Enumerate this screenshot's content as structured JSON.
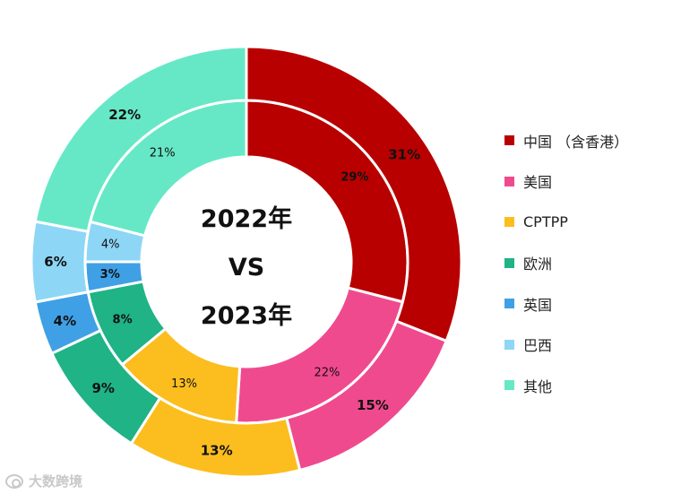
{
  "chart_data": {
    "type": "pie",
    "subtype": "nested-donut",
    "center_text": [
      "2022年",
      "VS",
      "2023年"
    ],
    "categories": [
      "中国 （含香港）",
      "美国",
      "CPTPP",
      "欧洲",
      "英国",
      "巴西",
      "其他"
    ],
    "colors": [
      "#B80000",
      "#F04A8E",
      "#FBBE1E",
      "#1FB386",
      "#3FA0E6",
      "#8DD6F6",
      "#66E8C6"
    ],
    "series": [
      {
        "values": [
          29,
          22,
          13,
          8,
          3,
          4,
          21
        ],
        "labels": [
          "29%",
          "22%",
          "13%",
          "8%",
          "3%",
          "4%",
          "21%"
        ]
      },
      {
        "values": [
          31,
          15,
          13,
          9,
          4,
          6,
          22
        ],
        "labels": [
          "31%",
          "15%",
          "13%",
          "9%",
          "4%",
          "6%",
          "22%"
        ]
      }
    ],
    "legend_position": "right"
  },
  "watermark": {
    "text": "大数跨境",
    "icon": "brand-logo-icon"
  }
}
